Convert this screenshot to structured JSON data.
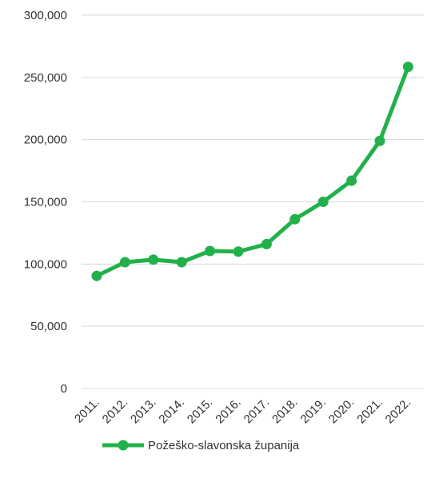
{
  "chart_data": {
    "type": "line",
    "categories": [
      "2011.",
      "2012.",
      "2013.",
      "2014.",
      "2015.",
      "2016.",
      "2017.",
      "2018.",
      "2019.",
      "2020.",
      "2021.",
      "2022."
    ],
    "series": [
      {
        "name": "Požeško-slavonska županija",
        "values": [
          90500,
          101500,
          103500,
          101500,
          110500,
          110000,
          116000,
          136000,
          150000,
          167000,
          199000,
          258500
        ],
        "color": "#22b04b"
      }
    ],
    "yticks": [
      0,
      50000,
      100000,
      150000,
      200000,
      250000,
      300000
    ],
    "ytick_labels": [
      "0",
      "50,000",
      "100,000",
      "150,000",
      "200,000",
      "250,000",
      "300,000"
    ],
    "ylim": [
      0,
      300000
    ],
    "grid": true,
    "gridline_color": "#d9d9d9",
    "legend_position": "bottom",
    "title": "",
    "xlabel": "",
    "ylabel": ""
  }
}
